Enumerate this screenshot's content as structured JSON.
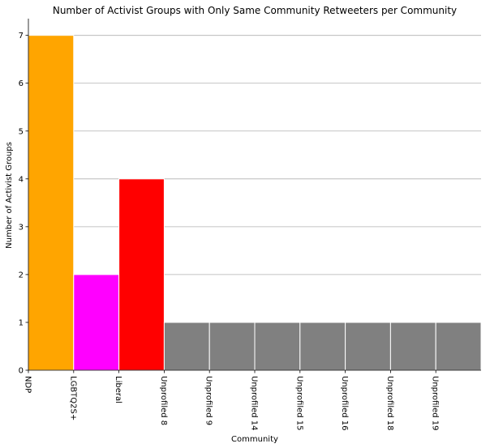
{
  "chart_data": {
    "type": "bar",
    "title": "Number of Activist Groups with Only Same Community Retweeters per Community",
    "xlabel": "Community",
    "ylabel": "Number of Activist Groups",
    "categories": [
      "NDP",
      "LGBTQ2S+",
      "Liberal",
      "Unprofiled 8",
      "Unprofiled 9",
      "Unprofiled 14",
      "Unprofiled 15",
      "Unprofiled 16",
      "Unprofiled 18",
      "Unprofiled 19"
    ],
    "values": [
      7,
      2,
      4,
      1,
      1,
      1,
      1,
      1,
      1,
      1
    ],
    "colors": [
      "#FFA500",
      "#FF00FF",
      "#FF0000",
      "#808080",
      "#808080",
      "#808080",
      "#808080",
      "#808080",
      "#808080",
      "#808080"
    ],
    "ylim": [
      0,
      7.35
    ],
    "yticks": [
      0,
      1,
      2,
      3,
      4,
      5,
      6,
      7
    ],
    "grid": "y-axis",
    "legend": "none"
  }
}
